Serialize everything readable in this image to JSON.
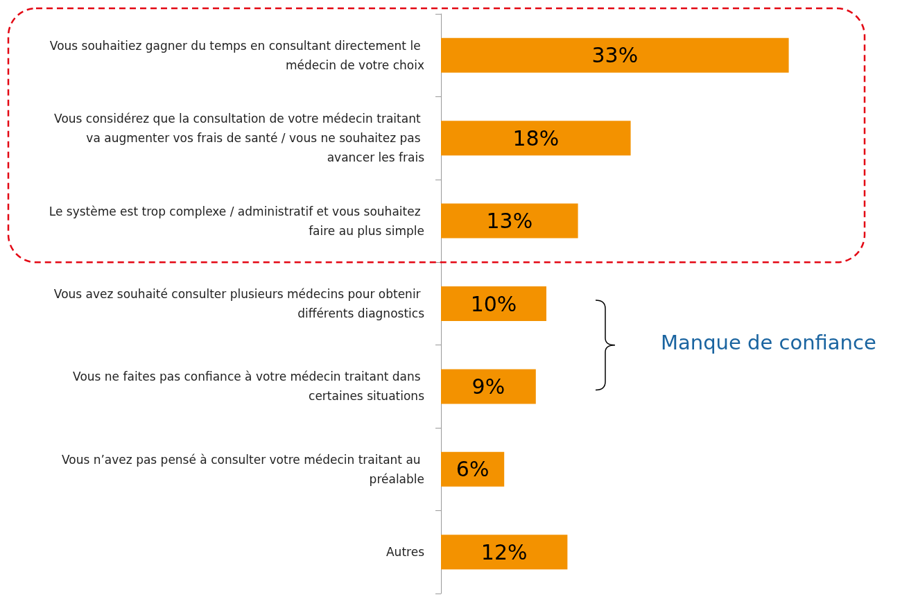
{
  "chart_data": {
    "type": "bar",
    "orientation": "horizontal",
    "tick_labels": "y",
    "categories": [
      "Vous souhaitiez gagner du temps en consultant directement le médecin de votre choix",
      "Vous considérez que la consultation de votre médecin traitant va augmenter vos frais de santé / vous ne souhaitez pas avancer les frais",
      "Le système est trop complexe / administratif et vous souhaitez faire au plus simple",
      "Vous avez souhaité consulter plusieurs médecins pour obtenir différents diagnostics",
      "Vous ne faites pas confiance à votre médecin traitant dans certaines situations",
      "Vous n’avez pas pensé à consulter votre médecin traitant au préalable",
      "Autres"
    ],
    "values": [
      33,
      18,
      13,
      10,
      9,
      6,
      12
    ],
    "value_labels": [
      "33%",
      "18%",
      "13%",
      "10%",
      "9%",
      "6%",
      "12%"
    ],
    "color": "#f39200",
    "annotations": [
      "Manque de confiance"
    ]
  }
}
